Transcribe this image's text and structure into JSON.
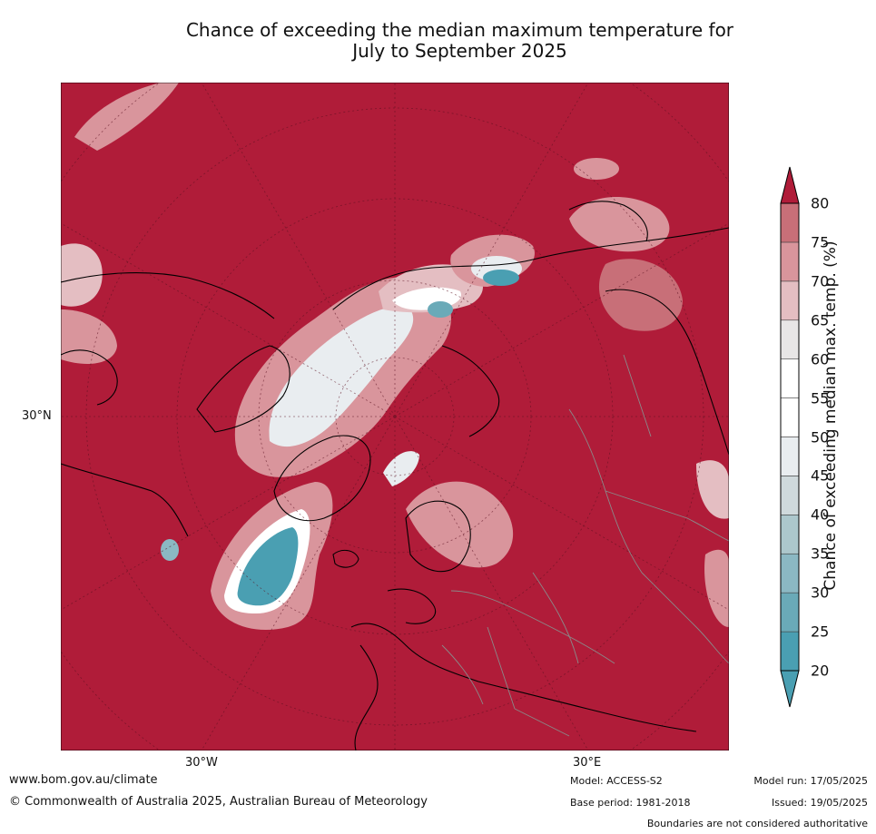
{
  "title_line1": "Chance of exceeding the median maximum temperature for",
  "title_line2": "July to September 2025",
  "axis_labels": {
    "lat": "30°N",
    "lon_w": "30°W",
    "lon_e": "30°E"
  },
  "colorbar": {
    "label": "Chance of exceeding median max. temp. (%)",
    "ticks": [
      "20",
      "25",
      "30",
      "35",
      "40",
      "45",
      "50",
      "55",
      "60",
      "65",
      "70",
      "75",
      "80"
    ],
    "colors": [
      "#4a9fb2",
      "#6aaab8",
      "#8bb8c3",
      "#acc7cc",
      "#cfd9dc",
      "#e9edf0",
      "#ffffff",
      "#ffffff",
      "#e8e6e6",
      "#e4bec2",
      "#d9959c",
      "#c86f78",
      "#b94552",
      "#b01c39"
    ],
    "extend_low_color": "#4a9fb2",
    "extend_high_color": "#b01c39"
  },
  "map": {
    "background_color": "#b01c39",
    "projection": "north-polar-stereographic"
  },
  "footer": {
    "url": "www.bom.gov.au/climate",
    "copyright": "© Commonwealth of Australia 2025, Australian Bureau of Meteorology",
    "model": "Model: ACCESS-S2",
    "base_period": "Base period: 1981-2018",
    "model_run": "Model run: 17/05/2025",
    "issued": "Issued: 19/05/2025",
    "disclaimer": "Boundaries are not considered authoritative"
  }
}
